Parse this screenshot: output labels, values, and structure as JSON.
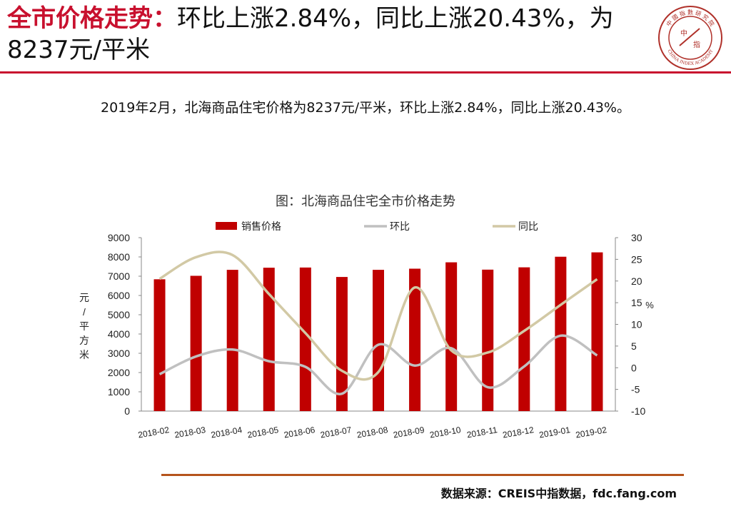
{
  "header": {
    "title_red": "全市价格走势：",
    "title_rest": "环比上涨2.84%，同比上涨20.43%，为8237元/平米"
  },
  "logo": {
    "top_text": "中 國 指 數 研 究 院",
    "center_text_1": "中",
    "center_text_2": "指",
    "bottom_text": "CHINA INDEX ACADEMY"
  },
  "summary": "2019年2月，北海商品住宅价格为8237元/平米，环比上涨2.84%，同比上涨20.43%。",
  "colors": {
    "accent_red": "#c8102e",
    "bar": "#c00000",
    "mom_line": "#c0c0c0",
    "yoy_line": "#d2c9a5",
    "source_rule": "#b5541c"
  },
  "chart_data": {
    "type": "bar",
    "title": "图：北海商品住宅全市价格走势",
    "categories": [
      "2018-02",
      "2018-03",
      "2018-04",
      "2018-05",
      "2018-06",
      "2018-07",
      "2018-08",
      "2018-09",
      "2018-10",
      "2018-11",
      "2018-12",
      "2019-01",
      "2019-02"
    ],
    "y_left_label": "元/平方米",
    "y_right_label": "%",
    "ylim_left": [
      0,
      9000
    ],
    "ylim_right": [
      -10,
      30
    ],
    "y_left_ticks": [
      0,
      1000,
      2000,
      3000,
      4000,
      5000,
      6000,
      7000,
      8000,
      9000
    ],
    "y_right_ticks": [
      -10,
      -5,
      0,
      5,
      10,
      15,
      20,
      25,
      30
    ],
    "legend_position": "top",
    "grid": false,
    "series": [
      {
        "name": "销售价格",
        "kind": "bar",
        "axis": "left",
        "values": [
          6840,
          7020,
          7330,
          7440,
          7450,
          6960,
          7330,
          7390,
          7720,
          7340,
          7460,
          8010,
          8237
        ]
      },
      {
        "name": "环比",
        "kind": "line",
        "axis": "right",
        "values": [
          -1.5,
          2.6,
          4.2,
          1.5,
          0.2,
          -6.0,
          5.3,
          0.5,
          4.5,
          -4.5,
          0.3,
          7.4,
          2.84
        ]
      },
      {
        "name": "同比",
        "kind": "line",
        "axis": "right",
        "values": [
          20.5,
          25.5,
          26.0,
          17.0,
          8.0,
          -0.7,
          -1.0,
          18.5,
          4.0,
          3.5,
          8.5,
          14.5,
          20.43
        ]
      }
    ]
  },
  "source": "数据来源：CREIS中指数据，fdc.fang.com"
}
